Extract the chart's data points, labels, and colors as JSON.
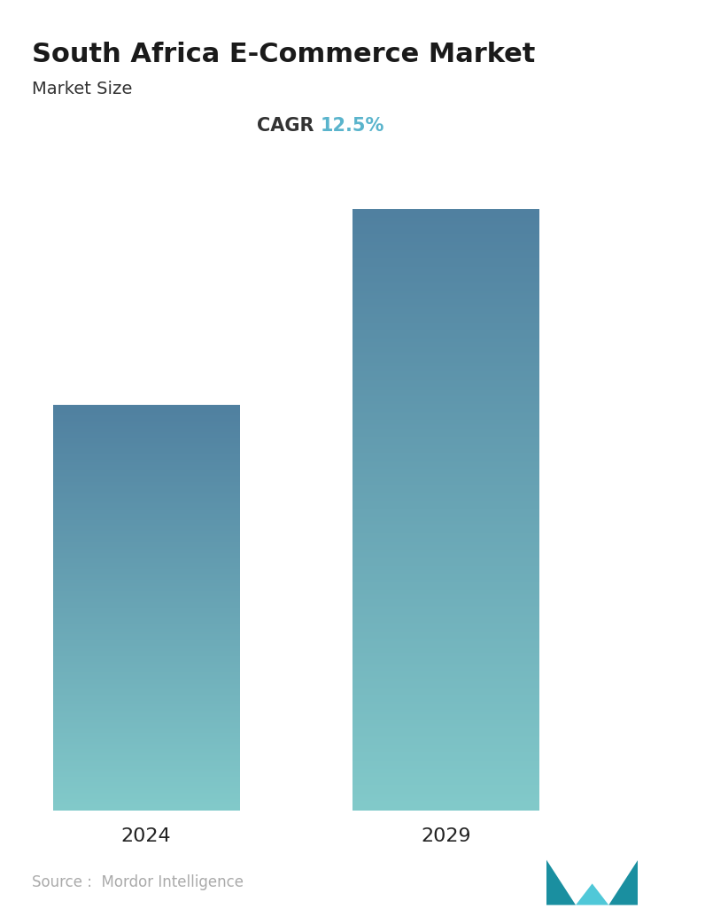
{
  "title": "South Africa E-Commerce Market",
  "subtitle": "Market Size",
  "cagr_label": "CAGR",
  "cagr_value": "12.5%",
  "cagr_label_color": "#333333",
  "cagr_value_color": "#5ab4cc",
  "categories": [
    "2024",
    "2029"
  ],
  "bar_top_color": "#5080a0",
  "bar_bottom_color": "#82caca",
  "source_text": "Source :  Mordor Intelligence",
  "source_color": "#aaaaaa",
  "background_color": "#ffffff",
  "title_fontsize": 22,
  "subtitle_fontsize": 14,
  "cagr_fontsize": 15,
  "tick_fontsize": 16,
  "source_fontsize": 12,
  "title_color": "#1a1a1a",
  "subtitle_color": "#333333",
  "tick_color": "#222222"
}
